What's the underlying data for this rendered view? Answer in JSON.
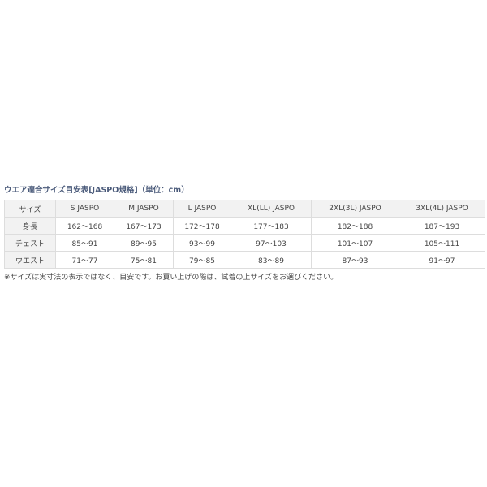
{
  "title": "ウエア適合サイズ目安表[JASPO規格]（単位：cm）",
  "table": {
    "headers": [
      "サイズ",
      "S JASPO",
      "M JASPO",
      "L JASPO",
      "XL(LL) JASPO",
      "2XL(3L) JASPO",
      "3XL(4L) JASPO"
    ],
    "rows": [
      [
        "身長",
        "162〜168",
        "167〜173",
        "172〜178",
        "177〜183",
        "182〜188",
        "187〜193"
      ],
      [
        "チェスト",
        "85〜91",
        "89〜95",
        "93〜99",
        "97〜103",
        "101〜107",
        "105〜111"
      ],
      [
        "ウエスト",
        "71〜77",
        "75〜81",
        "79〜85",
        "83〜89",
        "87〜93",
        "91〜97"
      ]
    ]
  },
  "note": "※サイズは実寸法の表示ではなく、目安です。お買い上げの際は、試着の上サイズをお選びください。"
}
